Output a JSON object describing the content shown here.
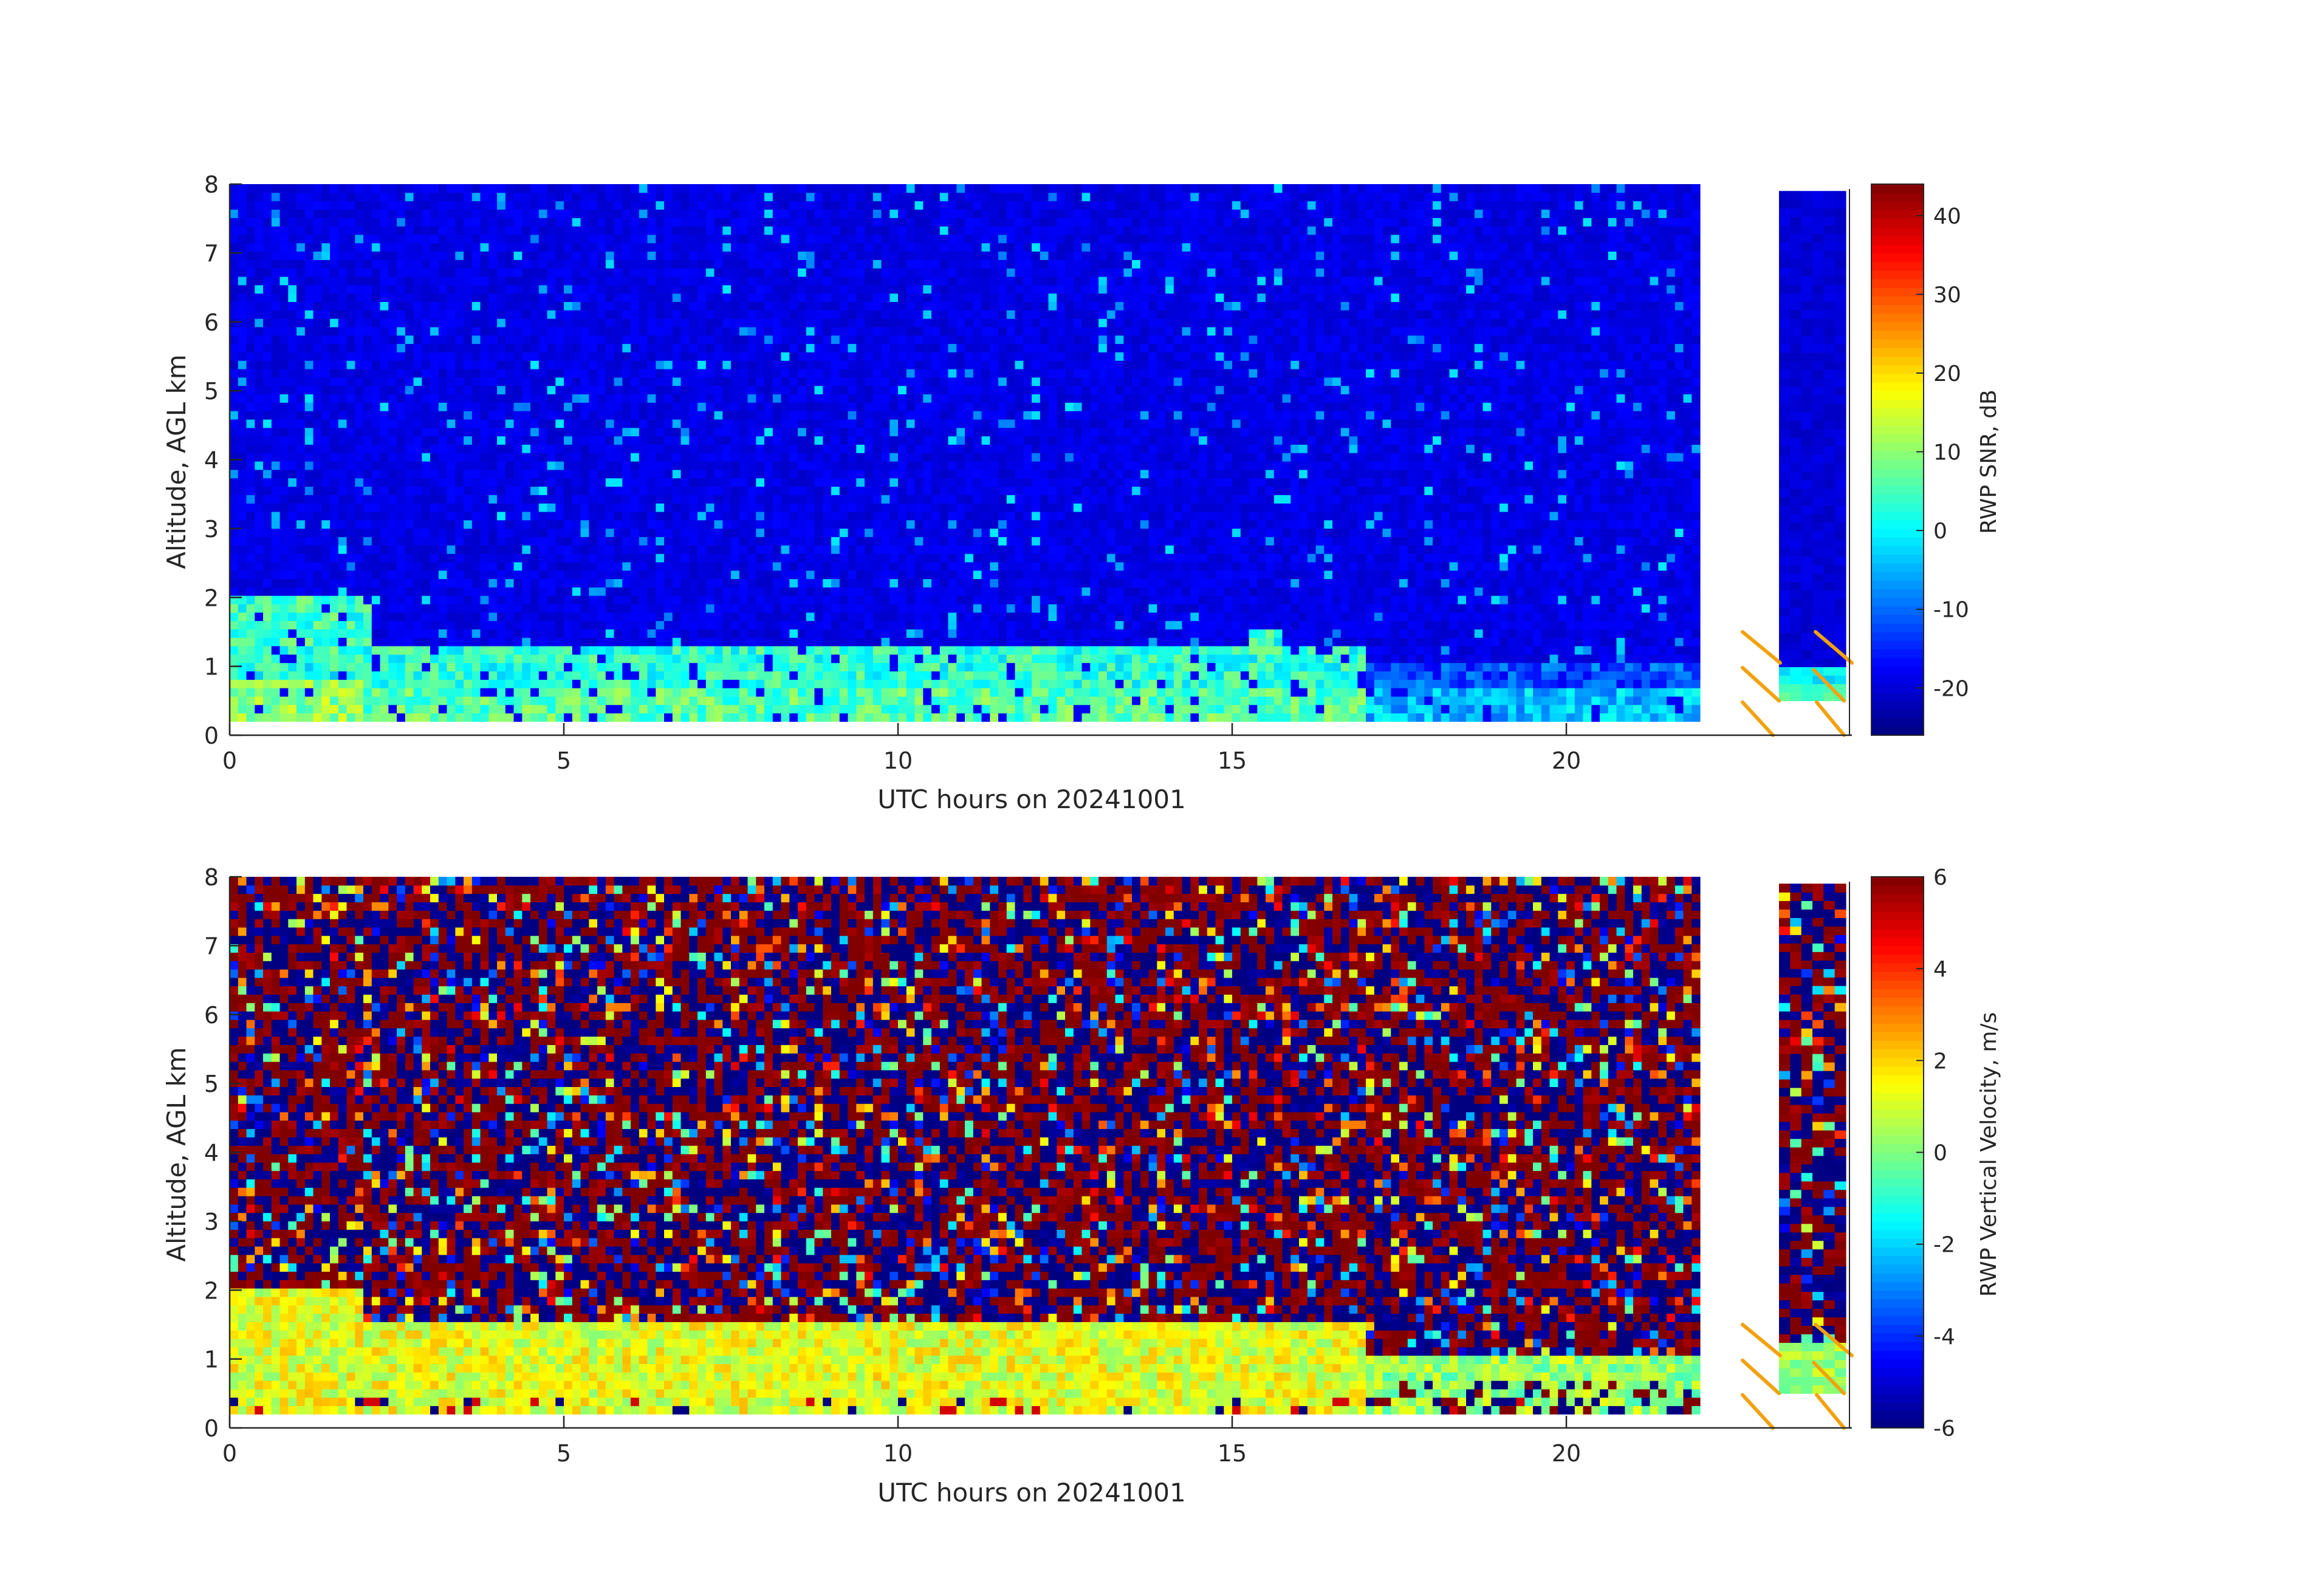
{
  "chart_data": [
    {
      "type": "heatmap",
      "xlabel": "UTC hours on 20241001",
      "ylabel": "Altitude, AGL km",
      "xlim": [
        0,
        24
      ],
      "ylim": [
        0,
        8
      ],
      "x_ticks": [
        "0",
        "5",
        "10",
        "15",
        "20"
      ],
      "y_ticks": [
        "0",
        "1",
        "2",
        "3",
        "4",
        "5",
        "6",
        "7",
        "8"
      ],
      "data_extent": {
        "time_hours": [
          0,
          22
        ],
        "altitude_km": [
          0.2,
          8
        ]
      },
      "colorbar": {
        "label": "RWP SNR, dB",
        "range": [
          -26,
          44
        ],
        "ticks": [
          "-20",
          "-10",
          "0",
          "10",
          "20",
          "30",
          "40"
        ],
        "colormap": "jet"
      },
      "regimes": [
        {
          "time_hours": [
            0,
            2
          ],
          "altitude_km": [
            0.2,
            2.0
          ],
          "value_db": [
            0,
            12
          ],
          "note": "moist boundary layer, plume near 2 h reaching 2 km"
        },
        {
          "time_hours": [
            2,
            17
          ],
          "altitude_km": [
            0.2,
            1.35
          ],
          "value_db": [
            -4,
            10
          ]
        },
        {
          "time_hours": [
            17,
            22
          ],
          "altitude_km": [
            0.2,
            1.0
          ],
          "value_db": [
            -12,
            2
          ]
        },
        {
          "time_hours": [
            0,
            22
          ],
          "altitude_km": [
            1.35,
            8.0
          ],
          "value_db": [
            -20,
            -16
          ],
          "note": "noise background"
        }
      ],
      "side_panel": {
        "altitude_km": [
          0.5,
          7.9
        ],
        "note": "narrow low-mode profile panel with diagonal markers"
      }
    },
    {
      "type": "heatmap",
      "xlabel": "UTC hours on 20241001",
      "ylabel": "Altitude, AGL km",
      "xlim": [
        0,
        24
      ],
      "ylim": [
        0,
        8
      ],
      "x_ticks": [
        "0",
        "5",
        "10",
        "15",
        "20"
      ],
      "y_ticks": [
        "0",
        "1",
        "2",
        "3",
        "4",
        "5",
        "6",
        "7",
        "8"
      ],
      "data_extent": {
        "time_hours": [
          0,
          22
        ],
        "altitude_km": [
          0.2,
          8
        ]
      },
      "colorbar": {
        "label": "RWP Vertical Velocity, m/s",
        "range": [
          -6,
          6
        ],
        "ticks": [
          "-6",
          "-4",
          "-2",
          "0",
          "2",
          "4",
          "6"
        ],
        "colormap": "jet"
      },
      "regimes": [
        {
          "time_hours": [
            0,
            17
          ],
          "altitude_km": [
            0.2,
            1.5
          ],
          "value_ms": [
            0,
            2
          ],
          "note": "weak updrafts in boundary layer"
        },
        {
          "time_hours": [
            17,
            22
          ],
          "altitude_km": [
            0.2,
            1.1
          ],
          "value_ms": [
            -1,
            1
          ]
        },
        {
          "time_hours": [
            0,
            22
          ],
          "altitude_km": [
            1.5,
            8.0
          ],
          "value_ms": [
            -6,
            6
          ],
          "note": "noisy, saturated red/blue"
        }
      ],
      "side_panel": {
        "altitude_km": [
          0.5,
          7.9
        ],
        "note": "narrow low-mode profile panel with diagonal markers"
      }
    }
  ],
  "colors": {
    "axis": "#262626",
    "marker": "#f2a20f",
    "background": "#ffffff"
  }
}
